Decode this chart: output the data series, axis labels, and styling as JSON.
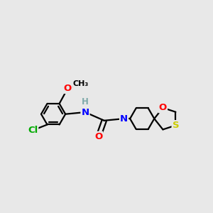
{
  "bg_color": "#e8e8e8",
  "atom_colors": {
    "C": "#000000",
    "N": "#0000ff",
    "O": "#ff0000",
    "S": "#cccc00",
    "Cl": "#00aa00",
    "H": "#7faaaa"
  },
  "bond_color": "#000000",
  "bond_width": 1.6,
  "font_size_atom": 9.5,
  "font_size_small": 8.5,
  "xlim": [
    0.0,
    5.5
  ],
  "ylim": [
    0.5,
    4.0
  ]
}
